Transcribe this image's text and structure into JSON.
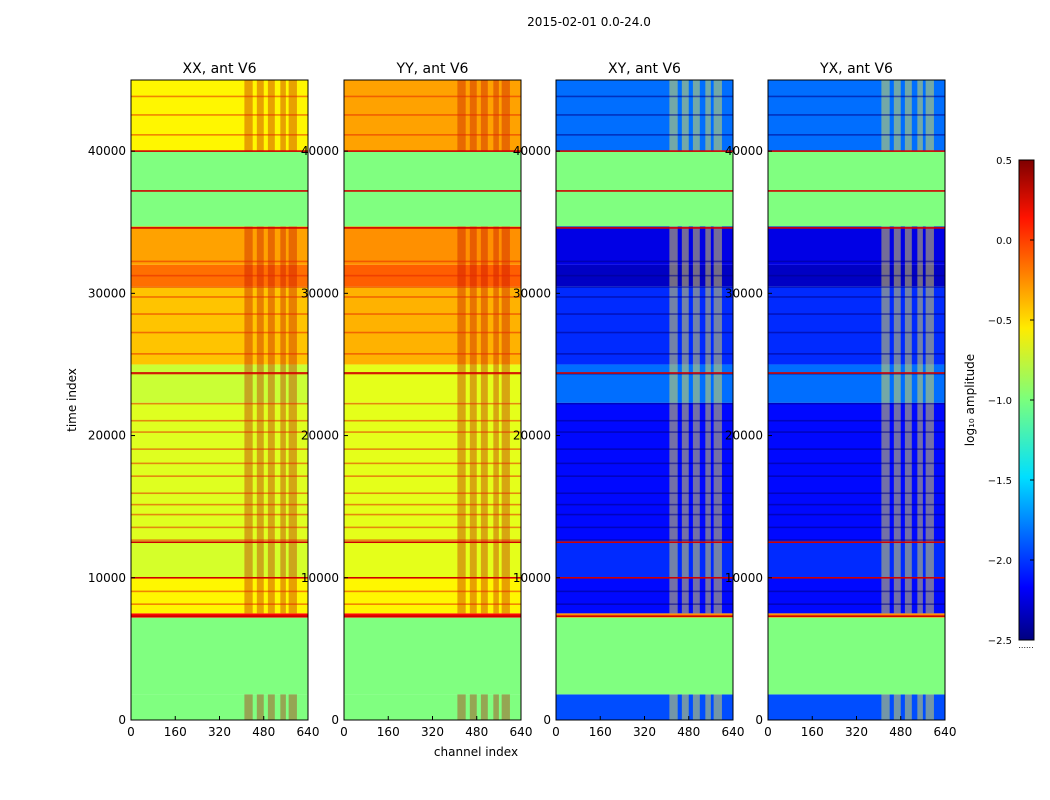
{
  "figure_title": "2015-02-01 0.0-24.0",
  "xlabel": "channel index",
  "ylabel": "time index",
  "colorbar_label": "log₁₀ amplitude",
  "colorbar_ticks": [
    "0.5",
    "0.0",
    "−0.5",
    "−1.0",
    "−1.5",
    "−2.0",
    "−2.5"
  ],
  "colorbar_under_marker": "......",
  "chart_data": [
    {
      "type": "heatmap",
      "title": "XX, ant V6",
      "xlabel": "channel index",
      "ylabel": "time index",
      "xlim": [
        0,
        640
      ],
      "ylim": [
        0,
        45000
      ],
      "x_ticks": [
        "0",
        "160",
        "320",
        "480",
        "640"
      ],
      "y_ticks": [
        "0",
        "10000",
        "20000",
        "30000",
        "40000"
      ],
      "value_units": "log10 amplitude",
      "value_range": [
        -2.5,
        0.5
      ],
      "bands": [
        {
          "t": [
            0,
            1800
          ],
          "v": -1.0
        },
        {
          "t": [
            1800,
            7200
          ],
          "v": -1.0
        },
        {
          "t": [
            7200,
            7500
          ],
          "v": 0.1
        },
        {
          "t": [
            7500,
            10000
          ],
          "v": -0.6
        },
        {
          "t": [
            10000,
            12600
          ],
          "v": -0.75
        },
        {
          "t": [
            12600,
            22300
          ],
          "v": -0.72
        },
        {
          "t": [
            22300,
            25000
          ],
          "v": -0.78
        },
        {
          "t": [
            25000,
            30500
          ],
          "v": -0.45
        },
        {
          "t": [
            30500,
            32000
          ],
          "v": -0.2
        },
        {
          "t": [
            32000,
            34700
          ],
          "v": -0.35
        },
        {
          "t": [
            34700,
            37300
          ],
          "v": -1.0
        },
        {
          "t": [
            37300,
            40000
          ],
          "v": -1.0
        },
        {
          "t": [
            40000,
            45000
          ],
          "v": -0.6
        }
      ]
    },
    {
      "type": "heatmap",
      "title": "YY, ant V6",
      "xlabel": "channel index",
      "ylabel": "time index",
      "xlim": [
        0,
        640
      ],
      "ylim": [
        0,
        45000
      ],
      "x_ticks": [
        "0",
        "160",
        "320",
        "480",
        "640"
      ],
      "y_ticks": [
        "0",
        "10000",
        "20000",
        "30000",
        "40000"
      ],
      "value_units": "log10 amplitude",
      "value_range": [
        -2.5,
        0.5
      ],
      "bands": [
        {
          "t": [
            0,
            1800
          ],
          "v": -1.0
        },
        {
          "t": [
            1800,
            7200
          ],
          "v": -1.0
        },
        {
          "t": [
            7200,
            7500
          ],
          "v": 0.1
        },
        {
          "t": [
            7500,
            10000
          ],
          "v": -0.6
        },
        {
          "t": [
            10000,
            12600
          ],
          "v": -0.7
        },
        {
          "t": [
            12600,
            22300
          ],
          "v": -0.7
        },
        {
          "t": [
            22300,
            25000
          ],
          "v": -0.7
        },
        {
          "t": [
            25000,
            30500
          ],
          "v": -0.4
        },
        {
          "t": [
            30500,
            32000
          ],
          "v": -0.15
        },
        {
          "t": [
            32000,
            34700
          ],
          "v": -0.3
        },
        {
          "t": [
            34700,
            37300
          ],
          "v": -1.0
        },
        {
          "t": [
            37300,
            40000
          ],
          "v": -1.0
        },
        {
          "t": [
            40000,
            45000
          ],
          "v": -0.35
        }
      ]
    },
    {
      "type": "heatmap",
      "title": "XY, ant V6",
      "xlabel": "channel index",
      "ylabel": "time index",
      "xlim": [
        0,
        640
      ],
      "ylim": [
        0,
        45000
      ],
      "x_ticks": [
        "0",
        "160",
        "320",
        "480",
        "640"
      ],
      "y_ticks": [
        "0",
        "10000",
        "20000",
        "30000",
        "40000"
      ],
      "value_units": "log10 amplitude",
      "value_range": [
        -2.5,
        0.5
      ],
      "bands": [
        {
          "t": [
            0,
            1800
          ],
          "v": -1.9
        },
        {
          "t": [
            1800,
            7200
          ],
          "v": -1.0
        },
        {
          "t": [
            7200,
            7500
          ],
          "v": -0.3
        },
        {
          "t": [
            7500,
            10000
          ],
          "v": -2.1
        },
        {
          "t": [
            10000,
            12600
          ],
          "v": -2.0
        },
        {
          "t": [
            12600,
            22300
          ],
          "v": -2.1
        },
        {
          "t": [
            22300,
            25000
          ],
          "v": -1.8
        },
        {
          "t": [
            25000,
            30500
          ],
          "v": -2.0
        },
        {
          "t": [
            30500,
            32000
          ],
          "v": -2.3
        },
        {
          "t": [
            32000,
            34700
          ],
          "v": -2.2
        },
        {
          "t": [
            34700,
            37300
          ],
          "v": -1.0
        },
        {
          "t": [
            37300,
            40000
          ],
          "v": -1.0
        },
        {
          "t": [
            40000,
            45000
          ],
          "v": -1.8
        }
      ]
    },
    {
      "type": "heatmap",
      "title": "YX, ant V6",
      "xlabel": "channel index",
      "ylabel": "time index",
      "xlim": [
        0,
        640
      ],
      "ylim": [
        0,
        45000
      ],
      "x_ticks": [
        "0",
        "160",
        "320",
        "480",
        "640"
      ],
      "y_ticks": [
        "0",
        "10000",
        "20000",
        "30000",
        "40000"
      ],
      "value_units": "log10 amplitude",
      "value_range": [
        -2.5,
        0.5
      ],
      "bands": [
        {
          "t": [
            0,
            1800
          ],
          "v": -1.9
        },
        {
          "t": [
            1800,
            7200
          ],
          "v": -1.0
        },
        {
          "t": [
            7200,
            7500
          ],
          "v": -0.3
        },
        {
          "t": [
            7500,
            10000
          ],
          "v": -2.1
        },
        {
          "t": [
            10000,
            12600
          ],
          "v": -2.0
        },
        {
          "t": [
            12600,
            22300
          ],
          "v": -2.1
        },
        {
          "t": [
            22300,
            25000
          ],
          "v": -1.8
        },
        {
          "t": [
            25000,
            30500
          ],
          "v": -2.0
        },
        {
          "t": [
            30500,
            32000
          ],
          "v": -2.3
        },
        {
          "t": [
            32000,
            34700
          ],
          "v": -2.2
        },
        {
          "t": [
            34700,
            37300
          ],
          "v": -1.0
        },
        {
          "t": [
            37300,
            40000
          ],
          "v": -1.0
        },
        {
          "t": [
            40000,
            45000
          ],
          "v": -1.8
        }
      ]
    }
  ]
}
